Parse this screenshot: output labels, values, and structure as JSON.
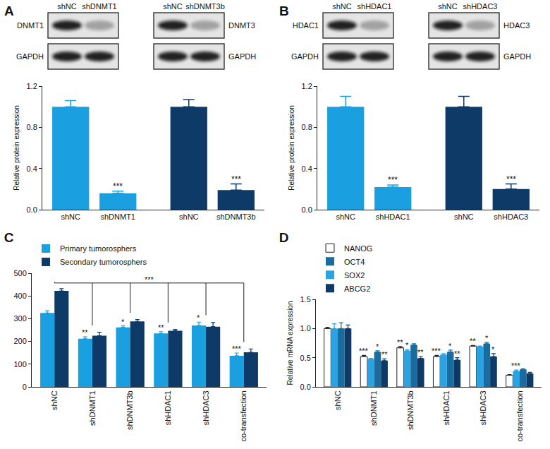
{
  "blots": [
    {
      "panel": "A",
      "groups": [
        {
          "lanes": [
            "shNC",
            "shDNMT1"
          ],
          "rows": [
            "DNMT1",
            "GAPDH"
          ]
        },
        {
          "lanes": [
            "shNC",
            "shDNMT3b"
          ],
          "rows": [
            "DNMT3",
            "GAPDH"
          ]
        }
      ]
    },
    {
      "panel": "B",
      "groups": [
        {
          "lanes": [
            "shNC",
            "shHDAC1"
          ],
          "rows": [
            "HDAC1",
            "GAPDH"
          ]
        },
        {
          "lanes": [
            "shNC",
            "shHDAC3"
          ],
          "rows": [
            "HDAC3",
            "GAPDH"
          ]
        }
      ]
    }
  ],
  "chart_data": [
    {
      "type": "bar",
      "categories": [
        "shNC",
        "shDNMT1",
        "shNC",
        "shDNMT3b"
      ],
      "values": [
        1.0,
        0.16,
        1.0,
        0.19
      ],
      "errors": [
        0.06,
        0.02,
        0.07,
        0.06
      ],
      "colors": [
        "#1a9fe0",
        "#1a9fe0",
        "#0d3a66",
        "#0d3a66"
      ],
      "ylabel": "Relative protein expression",
      "ylim": [
        0,
        1.2
      ],
      "yticks": [
        {
          "value": 0,
          "label": "0.0"
        },
        {
          "value": 0.4,
          "label": "0.4"
        },
        {
          "value": 0.8,
          "label": "0.8"
        },
        {
          "value": 1.2,
          "label": "1.2"
        }
      ],
      "grid": false,
      "annotations": [
        {
          "index": 1,
          "text": "***"
        },
        {
          "index": 3,
          "text": "***"
        }
      ]
    },
    {
      "type": "bar",
      "categories": [
        "shNC",
        "shHDAC1",
        "shNC",
        "shHDAC3"
      ],
      "values": [
        1.0,
        0.22,
        1.0,
        0.2
      ],
      "errors": [
        0.1,
        0.02,
        0.1,
        0.05
      ],
      "colors": [
        "#1a9fe0",
        "#1a9fe0",
        "#0d3a66",
        "#0d3a66"
      ],
      "ylabel": "Relative protein expression",
      "ylim": [
        0,
        1.2
      ],
      "yticks": [
        {
          "value": 0,
          "label": "0.0"
        },
        {
          "value": 0.4,
          "label": "0.4"
        },
        {
          "value": 0.8,
          "label": "0.8"
        },
        {
          "value": 1.2,
          "label": "1.2"
        }
      ],
      "grid": false,
      "annotations": [
        {
          "index": 1,
          "text": "***"
        },
        {
          "index": 3,
          "text": "***"
        }
      ]
    },
    {
      "type": "bar",
      "title": "C",
      "categories": [
        "shNC",
        "shDNMT1",
        "shDNMT3b",
        "shHDAC1",
        "shHDAC3",
        "co-transfection"
      ],
      "series": [
        {
          "name": "Primary tumorosphers",
          "color": "#1a9fe0",
          "values": [
            325,
            212,
            262,
            235,
            270,
            137
          ],
          "errors": [
            10,
            8,
            6,
            8,
            15,
            12
          ]
        },
        {
          "name": "Secondary tumorosphers",
          "color": "#0d3a66",
          "values": [
            422,
            225,
            288,
            247,
            265,
            152
          ],
          "errors": [
            10,
            15,
            8,
            6,
            18,
            15
          ]
        }
      ],
      "ylim": [
        0,
        500
      ],
      "yticks": [
        0,
        100,
        200,
        300,
        400,
        500
      ],
      "grid": false,
      "legend": "top-left",
      "annotations": [
        {
          "series": 0,
          "index": 1,
          "text": "**"
        },
        {
          "series": 0,
          "index": 2,
          "text": "*"
        },
        {
          "series": 0,
          "index": 3,
          "text": "**"
        },
        {
          "series": 0,
          "index": 4,
          "text": "*"
        },
        {
          "series": 0,
          "index": 5,
          "text": "***"
        }
      ],
      "bracket": {
        "text": "***",
        "indices": [
          0,
          1,
          2,
          3,
          4,
          5
        ]
      }
    },
    {
      "type": "bar",
      "title": "D",
      "categories": [
        "shNC",
        "shDNMT1",
        "shDNMT3b",
        "shHDAC1",
        "shHDAC3",
        "co-transfection"
      ],
      "series": [
        {
          "name": "NANOG",
          "color": "#ffffff",
          "values": [
            1.0,
            0.52,
            0.67,
            0.52,
            0.7,
            0.2
          ],
          "errors": [
            0.02,
            0.02,
            0.02,
            0.02,
            0.01,
            0.01
          ]
        },
        {
          "name": "SOX2",
          "color": "#29a3e3",
          "values": [
            1.0,
            0.48,
            0.62,
            0.55,
            0.69,
            0.27
          ],
          "errors": [
            0.08,
            0.01,
            0.02,
            0.02,
            0.01,
            0.02
          ]
        },
        {
          "name": "OCT4",
          "color": "#1b6c9e",
          "values": [
            1.0,
            0.6,
            0.72,
            0.6,
            0.74,
            0.3
          ],
          "errors": [
            0.1,
            0.02,
            0.02,
            0.03,
            0.02,
            0.01
          ]
        },
        {
          "name": "ABCG2",
          "color": "#0d3a66",
          "values": [
            1.0,
            0.45,
            0.49,
            0.46,
            0.52,
            0.23
          ],
          "errors": [
            0.06,
            0.03,
            0.03,
            0.04,
            0.05,
            0.02
          ]
        }
      ],
      "ylabel": "Relative mRNA expression",
      "ylim": [
        0,
        1.5
      ],
      "yticks": [
        {
          "value": 0,
          "label": "0.0"
        },
        {
          "value": 0.5,
          "label": "0.5"
        },
        {
          "value": 1.0,
          "label": "1.0"
        },
        {
          "value": 1.5,
          "label": "1.5"
        }
      ],
      "grid": false,
      "legend": "top-left",
      "annotations": [
        {
          "series": 0,
          "index": 1,
          "text": "***"
        },
        {
          "series": 2,
          "index": 1,
          "text": "*"
        },
        {
          "series": 3,
          "index": 1,
          "text": "**"
        },
        {
          "series": 0,
          "index": 2,
          "text": "**"
        },
        {
          "series": 1,
          "index": 2,
          "text": "*"
        },
        {
          "series": 3,
          "index": 2,
          "text": "**"
        },
        {
          "series": 0,
          "index": 3,
          "text": "***"
        },
        {
          "series": 2,
          "index": 3,
          "text": "*"
        },
        {
          "series": 3,
          "index": 3,
          "text": "**"
        },
        {
          "series": 0,
          "index": 4,
          "text": "**"
        },
        {
          "series": 2,
          "index": 4,
          "text": "*"
        },
        {
          "series": 3,
          "index": 4,
          "text": "*"
        },
        {
          "series": 1,
          "index": 5,
          "text": "***"
        }
      ]
    }
  ]
}
